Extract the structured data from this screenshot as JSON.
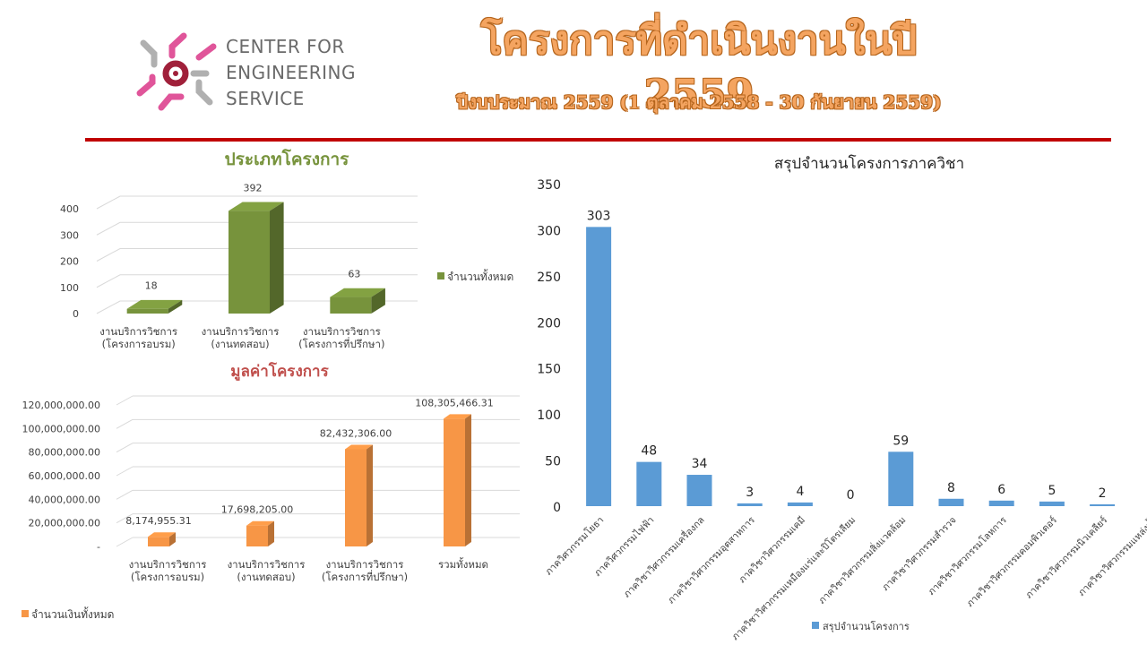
{
  "header": {
    "logo_lines": [
      "CENTER FOR",
      "ENGINEERING",
      "SERVICE"
    ],
    "title": "โครงการที่ดำเนินงานในปี 2559",
    "subtitle": "ปีงบประมาณ 2559 (1 ตุลาคม 2558 - 30 กันยายน 2559)",
    "colors": {
      "title": "#f4a460",
      "rule": "#c00000"
    }
  },
  "chart_data": [
    {
      "type": "bar",
      "title": "ประเภทโครงการ",
      "categories": [
        [
          "งานบริการวิชการ",
          "(โครงการอบรม)"
        ],
        [
          "งานบริการวิชการ",
          "(งานทดสอบ)"
        ],
        [
          "งานบริการวิชการ",
          "(โครงการที่ปรึกษา)"
        ]
      ],
      "series": [
        {
          "name": "จำนวนทั้งหมด",
          "values": [
            18,
            392,
            63
          ],
          "color": "#77933c"
        }
      ],
      "data_labels": [
        "18",
        "392",
        "63"
      ],
      "ylim": [
        0,
        400
      ],
      "yticks": [
        "0",
        "100",
        "200",
        "300",
        "400"
      ],
      "legend": "right",
      "three_d": true
    },
    {
      "type": "bar",
      "title": "มูลค่าโครงการ",
      "categories": [
        [
          "งานบริการวิชการ",
          "(โครงการอบรม)"
        ],
        [
          "งานบริการวิชการ",
          "(งานทดสอบ)"
        ],
        [
          "งานบริการวิชการ",
          "(โครงการที่ปรึกษา)"
        ],
        [
          "รวมทั้งหมด"
        ]
      ],
      "series": [
        {
          "name": "จำนวนเงินทั้งหมด",
          "values": [
            8174955.31,
            17698205.0,
            82432306.0,
            108305466.31
          ],
          "color": "#f79646"
        }
      ],
      "data_labels": [
        "8,174,955.31",
        "17,698,205.00",
        "82,432,306.00",
        "108,305,466.31"
      ],
      "ylim": [
        0,
        120000000
      ],
      "yticks": [
        "-",
        "20,000,000.00",
        "40,000,000.00",
        "60,000,000.00",
        "80,000,000.00",
        "100,000,000.00",
        "120,000,000.00"
      ],
      "legend": "bottom-left",
      "three_d": true
    },
    {
      "type": "bar",
      "title": "สรุปจำนวนโครงการภาควิชา",
      "categories": [
        "ภาควิศวกรรมโยธา",
        "ภาควิศวกรรมไฟฟ้า",
        "ภาควิชาวิศวกรรมเครื่องกล",
        "ภาควิชาวิศวกรรมอุตสาหการ",
        "ภาควิชาวิศวกรรมเคมี",
        "ภาควิชาวิศวกรรมเหมืองแร่และปิโตรเลียม",
        "ภาควิชาวิศวกรรมสิ่งแวดล้อม",
        "ภาควิชาวิศวกรรมสำรวจ",
        "ภาควิชาวิศวกรรมโลหการ",
        "ภาควิชาวิศวกรรมคอมพิวเตอร์",
        "ภาควิชาวิศวกรรมนิวเคลียร์",
        "ภาควิชาวิศวกรรมแหล่งน้ำ"
      ],
      "series": [
        {
          "name": "สรุปจำนวนโครงการ",
          "values": [
            303,
            48,
            34,
            3,
            4,
            0,
            59,
            8,
            6,
            5,
            2,
            null
          ],
          "color": "#5b9bd5"
        }
      ],
      "data_labels": [
        "303",
        "48",
        "34",
        "3",
        "4",
        "0",
        "59",
        "8",
        "6",
        "5",
        "2"
      ],
      "ylim": [
        0,
        350
      ],
      "yticks": [
        "0",
        "50",
        "100",
        "150",
        "200",
        "250",
        "300",
        "350"
      ],
      "legend": "bottom"
    }
  ]
}
